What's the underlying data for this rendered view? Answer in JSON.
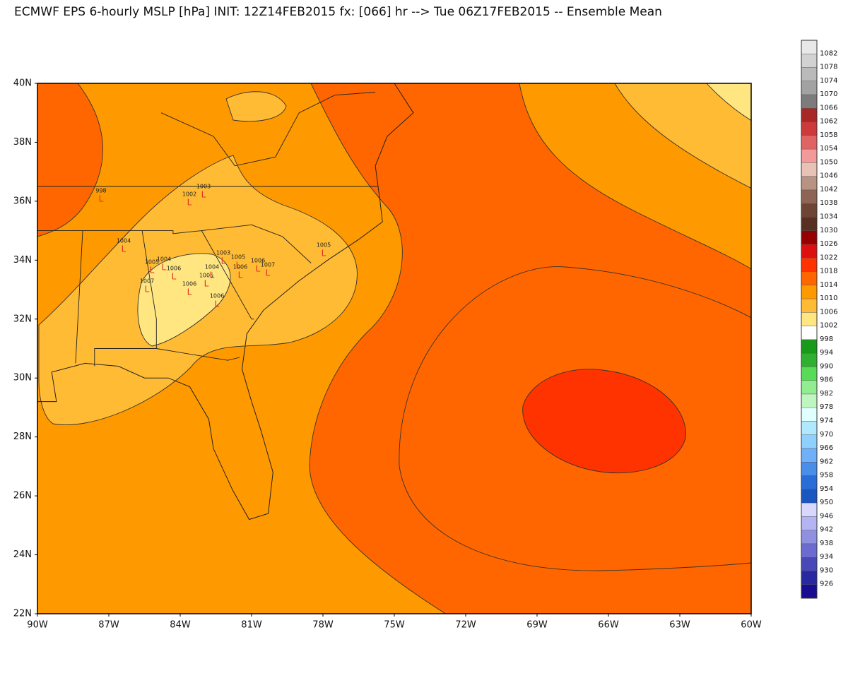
{
  "title": "ECMWF EPS 6-hourly MSLP [hPa] INIT: 12Z14FEB2015 fx: [066] hr --> Tue 06Z17FEB2015 -- Ensemble Mean",
  "map": {
    "lat_labels": [
      "40N",
      "38N",
      "36N",
      "34N",
      "32N",
      "30N",
      "28N",
      "26N",
      "24N",
      "22N"
    ],
    "lon_labels": [
      "90W",
      "87W",
      "84W",
      "81W",
      "78W",
      "75W",
      "72W",
      "69W",
      "66W",
      "63W",
      "60W"
    ],
    "lows": [
      {
        "pressure": "998",
        "symbol": "L"
      },
      {
        "pressure": "1002",
        "symbol": "L"
      },
      {
        "pressure": "1003",
        "symbol": "L"
      },
      {
        "pressure": "1004",
        "symbol": "L"
      },
      {
        "pressure": "1005",
        "symbol": "L"
      },
      {
        "pressure": "1004",
        "symbol": "L"
      },
      {
        "pressure": "1005",
        "symbol": "L"
      },
      {
        "pressure": "1006",
        "symbol": "L"
      },
      {
        "pressure": "1007",
        "symbol": "L"
      },
      {
        "pressure": "1006",
        "symbol": "L"
      },
      {
        "pressure": "1005",
        "symbol": "L"
      },
      {
        "pressure": "1006",
        "symbol": "L"
      },
      {
        "pressure": "1003",
        "symbol": "L"
      },
      {
        "pressure": "1004",
        "symbol": "L"
      },
      {
        "pressure": "1005",
        "symbol": "L"
      },
      {
        "pressure": "1006",
        "symbol": "L"
      },
      {
        "pressure": "1007",
        "symbol": "L"
      },
      {
        "pressure": "1006",
        "symbol": "L"
      }
    ]
  },
  "colorbar": {
    "labels": [
      "1082",
      "1078",
      "1074",
      "1070",
      "1066",
      "1062",
      "1058",
      "1054",
      "1050",
      "1046",
      "1042",
      "1038",
      "1034",
      "1030",
      "1026",
      "1022",
      "1018",
      "1014",
      "1010",
      "1006",
      "1002",
      "998",
      "994",
      "990",
      "986",
      "982",
      "978",
      "974",
      "970",
      "966",
      "962",
      "958",
      "954",
      "950",
      "946",
      "942",
      "938",
      "934",
      "930",
      "926"
    ],
    "colors": [
      "#e8e8e8",
      "#d2d2d2",
      "#bababa",
      "#a2a2a2",
      "#7c7c7c",
      "#a82828",
      "#cc3a3a",
      "#e06464",
      "#f29a9a",
      "#e8c2b4",
      "#b89282",
      "#8e6454",
      "#6e4434",
      "#583022",
      "#960000",
      "#dc1010",
      "#ff3300",
      "#ff6600",
      "#ff9900",
      "#ffbb33",
      "#ffe680",
      "#ffffff",
      "#1a9a1a",
      "#30b030",
      "#58dc58",
      "#90ee90",
      "#bff5bf",
      "#e0ffff",
      "#b0e8ff",
      "#90d0ff",
      "#70b0f8",
      "#4a8ee8",
      "#2a6cd8",
      "#1a56c0",
      "#d8d8ff",
      "#b4b4f2",
      "#9090e0",
      "#6c6cd0",
      "#4848b8",
      "#2828a0",
      "#180c90"
    ]
  }
}
